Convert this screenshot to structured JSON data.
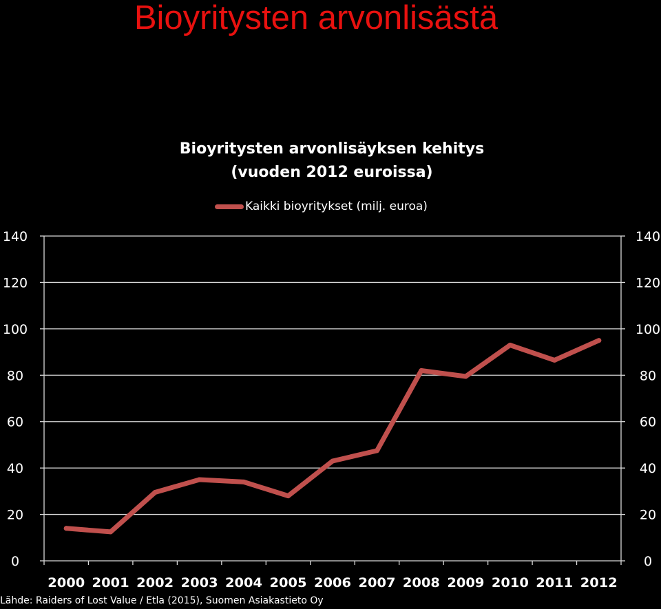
{
  "slide_title": "Bioyritysten arvonlisästä",
  "source": "Lähde: Raiders of Lost Value / Etla (2015), Suomen Asiakastieto Oy",
  "colors": {
    "title": "#e8110f",
    "line": "#c0504d",
    "background": "#000000",
    "grid": "#d9d9d9"
  },
  "chart_data": {
    "type": "line",
    "title_lines": [
      "Bioyritysten arvonlisäyksen kehitys",
      "(vuoden 2012 euroissa)"
    ],
    "categories": [
      "2000",
      "2001",
      "2002",
      "2003",
      "2004",
      "2005",
      "2006",
      "2007",
      "2008",
      "2009",
      "2010",
      "2011",
      "2012"
    ],
    "series": [
      {
        "name": "Kaikki bioyritykset (milj. euroa)",
        "values": [
          14,
          12.5,
          29.5,
          35,
          34,
          28,
          43,
          47.5,
          82,
          79.5,
          93,
          86.5,
          95
        ]
      }
    ],
    "ylim": [
      0,
      140
    ],
    "yticks": [
      "0",
      "20",
      "40",
      "60",
      "80",
      "100",
      "120",
      "140"
    ],
    "secondary_yticks": [
      "0",
      "20",
      "40",
      "60",
      "80",
      "100",
      "120",
      "140"
    ],
    "grid": true,
    "legend_position": "top"
  }
}
